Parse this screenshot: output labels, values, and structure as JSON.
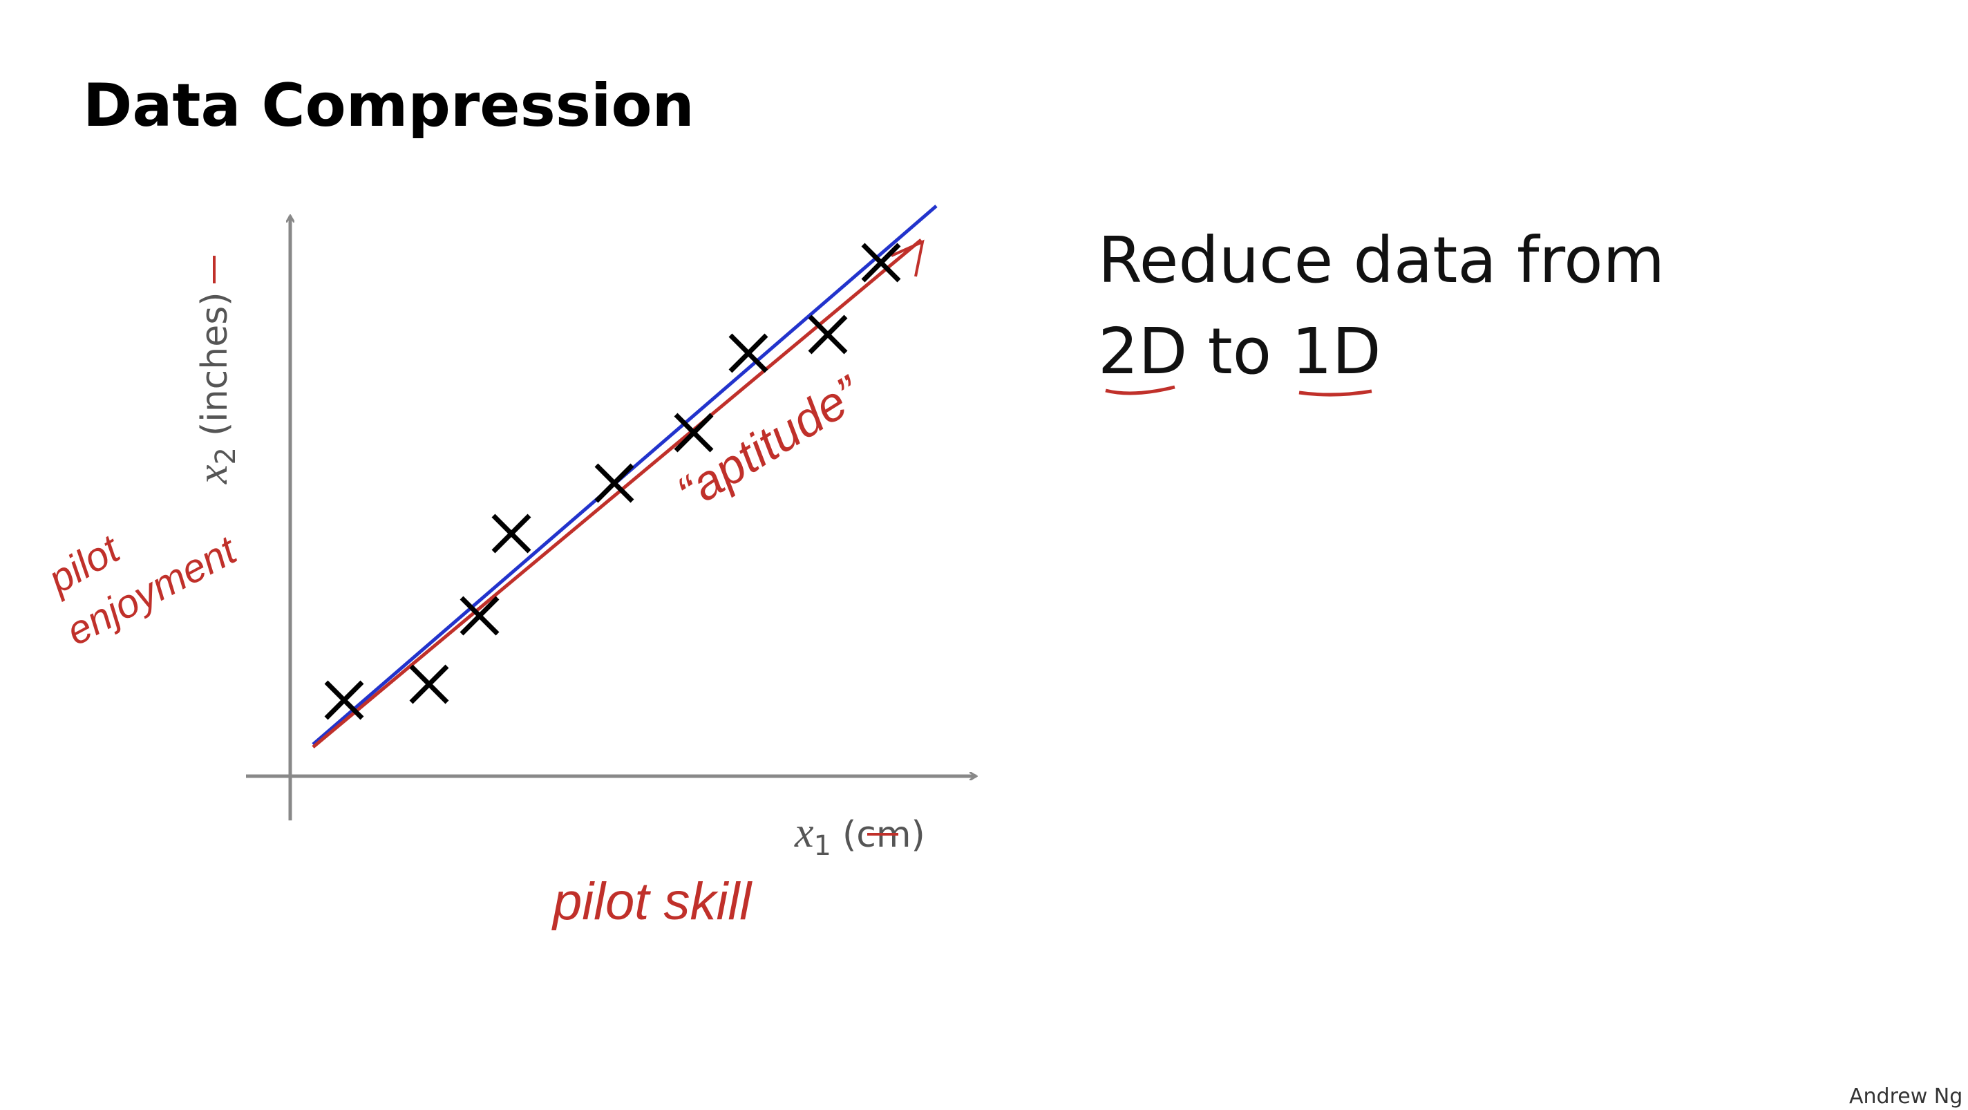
{
  "slide": {
    "title": "Data Compression",
    "plot": {
      "x_label": "x",
      "x_subscript": "1",
      "x_unit": "(cm)",
      "y_label": "x",
      "y_subscript": "2",
      "y_unit": "(inches)",
      "annotations": {
        "x_new": "pilot skill",
        "y_new_1": "pilot",
        "y_new_2": "enjoyment",
        "line": "“aptitude”"
      }
    },
    "text": {
      "line1": "Reduce data from",
      "line2": "2D to 1D"
    },
    "footer": "Andrew Ng"
  }
}
